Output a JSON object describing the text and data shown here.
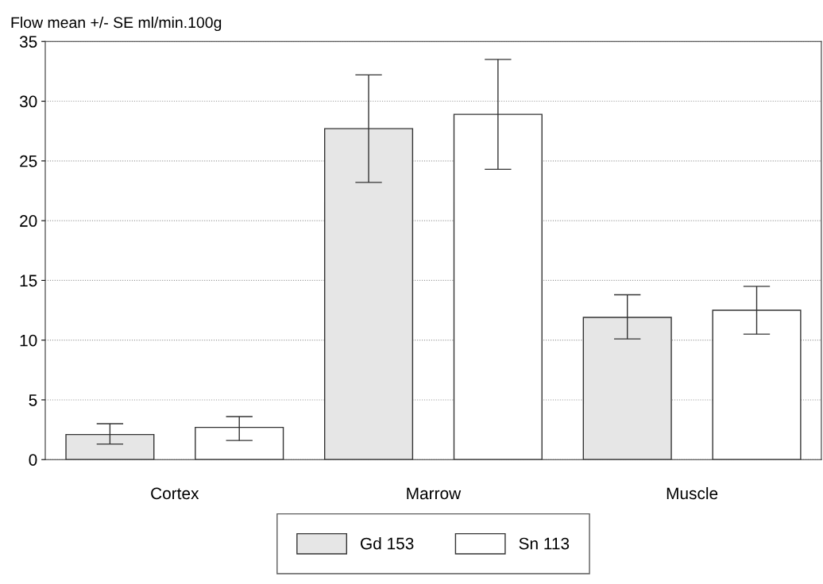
{
  "chart_data": {
    "type": "bar",
    "ylabel": "Flow mean +/- SE ml/min.100g",
    "categories": [
      "Cortex",
      "Marrow",
      "Muscle"
    ],
    "series": [
      {
        "name": "Gd 153",
        "color": "#e6e6e6",
        "values": [
          2.1,
          27.7,
          11.9
        ],
        "errors": [
          [
            1.3,
            3.0
          ],
          [
            23.2,
            32.2
          ],
          [
            10.1,
            13.8
          ]
        ]
      },
      {
        "name": "Sn 113",
        "color": "#ffffff",
        "values": [
          2.7,
          28.9,
          12.5
        ],
        "errors": [
          [
            1.6,
            3.6
          ],
          [
            24.3,
            33.5
          ],
          [
            10.5,
            14.5
          ]
        ]
      }
    ],
    "ylim": [
      0,
      35
    ],
    "yticks": [
      0,
      5,
      10,
      15,
      20,
      25,
      30,
      35
    ],
    "grid": "y",
    "legend": "bottom"
  }
}
